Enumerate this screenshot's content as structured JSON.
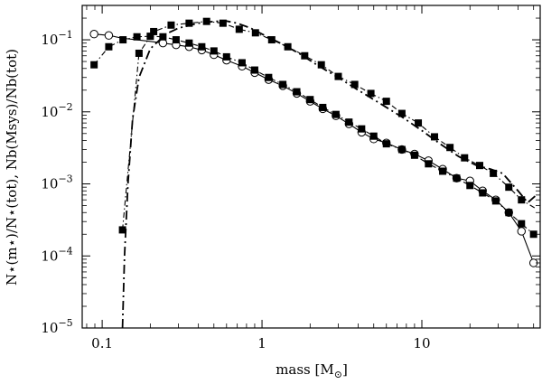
{
  "chart_data": {
    "type": "line",
    "xscale": "log",
    "yscale": "log",
    "xlim": [
      0.075,
      55
    ],
    "ylim": [
      1e-05,
      0.3
    ],
    "xlabel": "mass [M",
    "xlabel_sub": "⊙",
    "xlabel_end": "]",
    "ylabel": "N⋆(m⋆)/N⋆(tot), Nb(Msys)/Nb(tot)",
    "x_ticks": [
      {
        "value": 0.1,
        "label": "0.1"
      },
      {
        "value": 1,
        "label": "1"
      },
      {
        "value": 10,
        "label": "10"
      }
    ],
    "y_ticks": [
      {
        "value": 1e-05,
        "base": "10",
        "exp": "−5"
      },
      {
        "value": 0.0001,
        "base": "10",
        "exp": "−4"
      },
      {
        "value": 0.001,
        "base": "10",
        "exp": "−3"
      },
      {
        "value": 0.01,
        "base": "10",
        "exp": "−2"
      },
      {
        "value": 0.1,
        "base": "10",
        "exp": "−1"
      }
    ],
    "grid": false,
    "series": [
      {
        "style": "solid-open-circle",
        "x": [
          0.089,
          0.11,
          0.135,
          0.165,
          0.2,
          0.24,
          0.29,
          0.35,
          0.42,
          0.5,
          0.6,
          0.75,
          0.9,
          1.1,
          1.35,
          1.65,
          2.0,
          2.4,
          2.9,
          3.5,
          4.2,
          5.0,
          6.0,
          7.5,
          9.0,
          11,
          13.5,
          16.5,
          20,
          24,
          29,
          35,
          42,
          50
        ],
        "y": [
          0.12,
          0.115,
          0.105,
          0.1,
          0.095,
          0.09,
          0.085,
          0.08,
          0.072,
          0.062,
          0.052,
          0.043,
          0.035,
          0.028,
          0.023,
          0.018,
          0.014,
          0.011,
          0.0088,
          0.0068,
          0.0052,
          0.0042,
          0.0037,
          0.003,
          0.0026,
          0.0021,
          0.0016,
          0.0012,
          0.0011,
          0.0008,
          0.0006,
          0.0004,
          0.00022,
          8e-05
        ]
      },
      {
        "style": "dashdot-filled-square",
        "x": [
          0.089,
          0.11,
          0.135,
          0.165,
          0.2,
          0.24,
          0.29,
          0.35,
          0.42,
          0.5,
          0.6,
          0.75,
          0.9,
          1.1,
          1.35,
          1.65,
          2.0,
          2.4,
          2.9,
          3.5,
          4.2,
          5.0,
          6.0,
          7.5,
          9.0,
          11,
          13.5,
          16.5,
          20,
          24,
          29,
          35,
          42,
          50
        ],
        "y": [
          0.045,
          0.08,
          0.1,
          0.11,
          0.112,
          0.11,
          0.1,
          0.09,
          0.08,
          0.07,
          0.058,
          0.048,
          0.038,
          0.03,
          0.024,
          0.019,
          0.0148,
          0.0115,
          0.0092,
          0.0072,
          0.0058,
          0.0046,
          0.0036,
          0.003,
          0.0025,
          0.0019,
          0.0015,
          0.0012,
          0.00095,
          0.00075,
          0.00058,
          0.0004,
          0.00028,
          0.0002
        ]
      },
      {
        "style": "longdash",
        "x": [
          0.134,
          0.138,
          0.145,
          0.155,
          0.17,
          0.2,
          0.25,
          0.3,
          0.4,
          0.5,
          0.6,
          0.7,
          0.85,
          1.0,
          1.3,
          1.7,
          2.2,
          3.0,
          4.0,
          5.5,
          7.5,
          10,
          13,
          17,
          22,
          27,
          32,
          40,
          46,
          52
        ],
        "y": [
          1e-05,
          0.0001,
          0.001,
          0.008,
          0.03,
          0.075,
          0.12,
          0.145,
          0.17,
          0.18,
          0.182,
          0.17,
          0.145,
          0.12,
          0.09,
          0.065,
          0.045,
          0.03,
          0.02,
          0.013,
          0.0085,
          0.0055,
          0.0036,
          0.0024,
          0.0018,
          0.0016,
          0.0014,
          0.0008,
          0.00055,
          0.0007
        ]
      },
      {
        "style": "dashdot-filled-square",
        "x": [
          0.134,
          0.17,
          0.21,
          0.27,
          0.35,
          0.45,
          0.57,
          0.72,
          0.91,
          1.15,
          1.45,
          1.85,
          2.35,
          3.0,
          3.8,
          4.8,
          6.0,
          7.5,
          9.5,
          12,
          15,
          18.5,
          23,
          28,
          35,
          42,
          52
        ],
        "y": [
          0.00023,
          0.065,
          0.13,
          0.16,
          0.17,
          0.18,
          0.17,
          0.14,
          0.125,
          0.1,
          0.08,
          0.06,
          0.045,
          0.031,
          0.024,
          0.018,
          0.014,
          0.0095,
          0.007,
          0.0045,
          0.0032,
          0.0023,
          0.0018,
          0.0014,
          0.0009,
          0.0006,
          0.00045
        ]
      }
    ],
    "markers": [
      {
        "series": 0,
        "type": "circle",
        "x": [
          0.089,
          0.11,
          0.24,
          0.29,
          0.35,
          0.42,
          0.5,
          0.6,
          0.75,
          0.9,
          1.1,
          1.35,
          1.65,
          2.0,
          2.4,
          2.9,
          3.5,
          4.2,
          5.0,
          6.0,
          7.5,
          9.0,
          11,
          13.5,
          16.5,
          20,
          24,
          29,
          35,
          42,
          50
        ],
        "y": [
          0.12,
          0.115,
          0.09,
          0.085,
          0.08,
          0.072,
          0.062,
          0.052,
          0.043,
          0.035,
          0.028,
          0.023,
          0.018,
          0.014,
          0.011,
          0.0088,
          0.0068,
          0.0052,
          0.0042,
          0.0037,
          0.003,
          0.0026,
          0.0021,
          0.0016,
          0.0012,
          0.0011,
          0.0008,
          0.0006,
          0.0004,
          0.00022,
          8e-05
        ]
      },
      {
        "series": 1,
        "type": "square",
        "x": [
          0.089,
          0.11,
          0.135,
          0.165,
          0.2,
          0.24,
          0.29,
          0.35,
          0.42,
          0.5,
          0.6,
          0.75,
          0.9,
          1.1,
          1.35,
          1.65,
          2.0,
          2.4,
          2.9,
          3.5,
          4.2,
          5.0,
          6.0,
          7.5,
          9.0,
          11,
          13.5,
          16.5,
          20,
          24,
          29,
          35,
          42,
          50
        ],
        "y": [
          0.045,
          0.08,
          0.1,
          0.11,
          0.112,
          0.11,
          0.1,
          0.09,
          0.08,
          0.07,
          0.058,
          0.048,
          0.038,
          0.03,
          0.024,
          0.019,
          0.0148,
          0.0115,
          0.0092,
          0.0072,
          0.0058,
          0.0046,
          0.0036,
          0.003,
          0.0025,
          0.0019,
          0.0015,
          0.0012,
          0.00095,
          0.00075,
          0.00058,
          0.0004,
          0.00028,
          0.0002
        ]
      },
      {
        "series": 3,
        "type": "square",
        "x": [
          0.134,
          0.17,
          0.21,
          0.27,
          0.35,
          0.45,
          0.57,
          0.72,
          0.91,
          1.15,
          1.45,
          1.85,
          2.35,
          3.0,
          3.8,
          4.8,
          6.0,
          7.5,
          9.5,
          12,
          15,
          18.5,
          23,
          28,
          35,
          42
        ],
        "y": [
          0.00023,
          0.065,
          0.13,
          0.16,
          0.17,
          0.18,
          0.17,
          0.14,
          0.125,
          0.1,
          0.08,
          0.06,
          0.045,
          0.031,
          0.024,
          0.018,
          0.014,
          0.0095,
          0.007,
          0.0045,
          0.0032,
          0.0023,
          0.0018,
          0.0014,
          0.0009,
          0.0006
        ]
      }
    ]
  }
}
